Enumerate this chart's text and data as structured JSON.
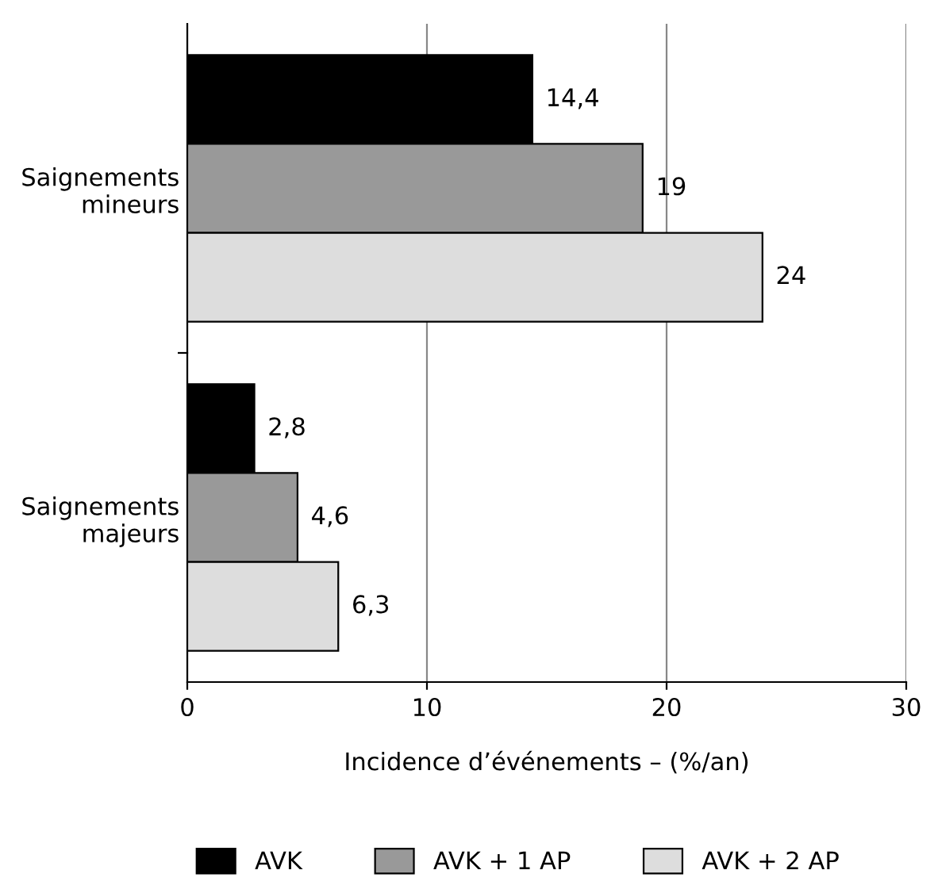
{
  "chart_data": {
    "type": "bar",
    "orientation": "horizontal",
    "categories": [
      "Saignements\nmineurs",
      "Saignements\nmajeurs"
    ],
    "xlabel": "Incidence d’événements – (%/an)",
    "xlim": [
      0,
      30
    ],
    "xticks": [
      0,
      10,
      20,
      30
    ],
    "grid": "x",
    "legend": "bottom",
    "series": [
      {
        "name": "AVK",
        "color": "#000000",
        "values": [
          14.4,
          2.8
        ],
        "value_labels": [
          "14,4",
          "2,8"
        ]
      },
      {
        "name": "AVK + 1 AP",
        "color": "#999999",
        "values": [
          19,
          4.6
        ],
        "value_labels": [
          "19",
          "4,6"
        ]
      },
      {
        "name": "AVK + 2 AP",
        "color": "#dddddd",
        "values": [
          24,
          6.3
        ],
        "value_labels": [
          "24",
          "6,3"
        ]
      }
    ]
  }
}
